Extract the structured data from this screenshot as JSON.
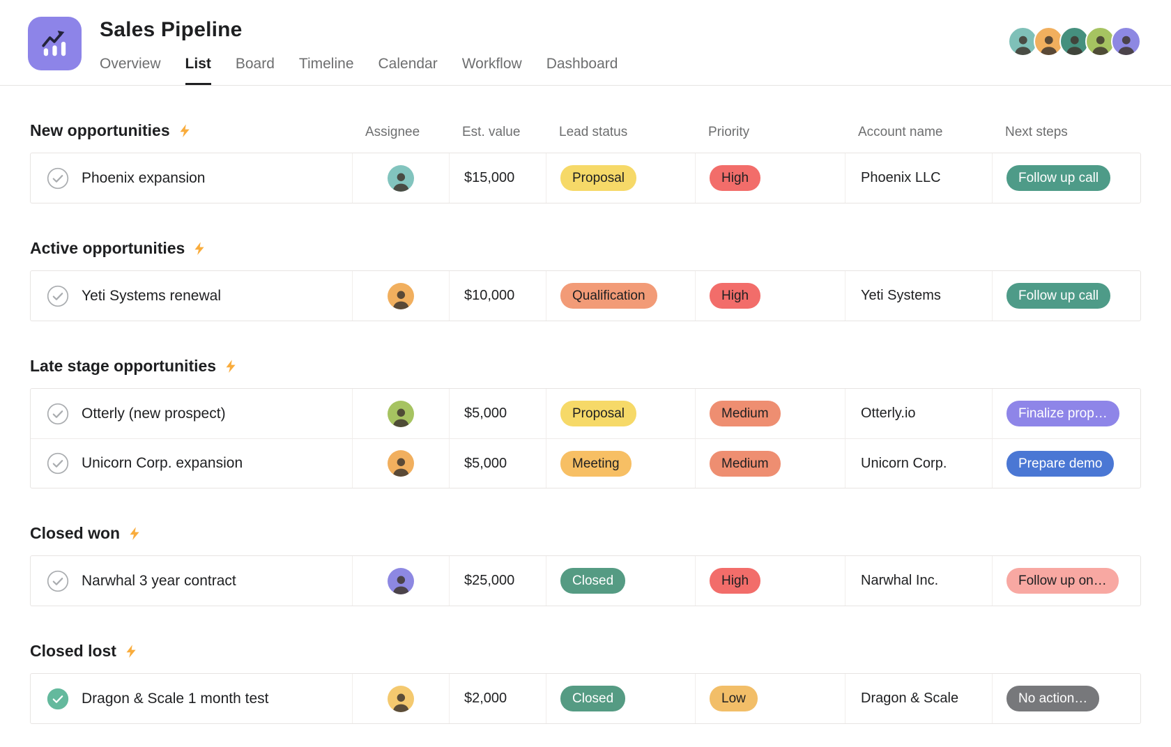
{
  "header": {
    "title": "Sales Pipeline",
    "app_icon_bg": "#8d84e8",
    "tabs": [
      {
        "label": "Overview",
        "active": false
      },
      {
        "label": "List",
        "active": true
      },
      {
        "label": "Board",
        "active": false
      },
      {
        "label": "Timeline",
        "active": false
      },
      {
        "label": "Calendar",
        "active": false
      },
      {
        "label": "Workflow",
        "active": false
      },
      {
        "label": "Dashboard",
        "active": false
      }
    ],
    "team_avatars": [
      {
        "color": "#7fc0b8"
      },
      {
        "color": "#f1af5e"
      },
      {
        "color": "#45907e"
      },
      {
        "color": "#a6c361"
      },
      {
        "color": "#8d88e2"
      }
    ]
  },
  "columns": [
    "Assignee",
    "Est. value",
    "Lead status",
    "Priority",
    "Account name",
    "Next steps"
  ],
  "sections": [
    {
      "title": "New opportunities",
      "rows": [
        {
          "task": "Phoenix expansion",
          "completed": false,
          "avatar_color": "#82c4be",
          "est_value": "$15,000",
          "lead_status": {
            "label": "Proposal",
            "bg": "#f6d968",
            "fg": "#1e1f21"
          },
          "priority": {
            "label": "High",
            "bg": "#f26d6a",
            "fg": "#1e1f21"
          },
          "account": "Phoenix LLC",
          "next_step": {
            "label": "Follow up call",
            "bg": "#4e9b88",
            "fg": "#ffffff"
          }
        }
      ]
    },
    {
      "title": "Active opportunities",
      "rows": [
        {
          "task": "Yeti Systems renewal",
          "completed": false,
          "avatar_color": "#f1af5e",
          "est_value": "$10,000",
          "lead_status": {
            "label": "Qualification",
            "bg": "#f29b77",
            "fg": "#1e1f21"
          },
          "priority": {
            "label": "High",
            "bg": "#f26d6a",
            "fg": "#1e1f21"
          },
          "account": "Yeti Systems",
          "next_step": {
            "label": "Follow up call",
            "bg": "#4e9b88",
            "fg": "#ffffff"
          }
        }
      ]
    },
    {
      "title": "Late stage opportunities",
      "rows": [
        {
          "task": "Otterly (new prospect)",
          "completed": false,
          "avatar_color": "#a6c361",
          "est_value": "$5,000",
          "lead_status": {
            "label": "Proposal",
            "bg": "#f6d968",
            "fg": "#1e1f21"
          },
          "priority": {
            "label": "Medium",
            "bg": "#ee8e71",
            "fg": "#1e1f21"
          },
          "account": "Otterly.io",
          "next_step": {
            "label": "Finalize prop…",
            "bg": "#8e85e8",
            "fg": "#ffffff"
          }
        },
        {
          "task": "Unicorn Corp. expansion",
          "completed": false,
          "avatar_color": "#f1af5e",
          "est_value": "$5,000",
          "lead_status": {
            "label": "Meeting",
            "bg": "#f7bf64",
            "fg": "#1e1f21"
          },
          "priority": {
            "label": "Medium",
            "bg": "#ee8e71",
            "fg": "#1e1f21"
          },
          "account": "Unicorn Corp.",
          "next_step": {
            "label": "Prepare demo",
            "bg": "#4a77d4",
            "fg": "#ffffff"
          }
        }
      ]
    },
    {
      "title": "Closed won",
      "rows": [
        {
          "task": "Narwhal 3 year contract",
          "completed": false,
          "avatar_color": "#8d88e2",
          "est_value": "$25,000",
          "lead_status": {
            "label": "Closed",
            "bg": "#559b83",
            "fg": "#ffffff"
          },
          "priority": {
            "label": "High",
            "bg": "#f26d6a",
            "fg": "#1e1f21"
          },
          "account": "Narwhal Inc.",
          "next_step": {
            "label": "Follow up on…",
            "bg": "#f8a8a2",
            "fg": "#1e1f21"
          }
        }
      ]
    },
    {
      "title": "Closed lost",
      "rows": [
        {
          "task": "Dragon & Scale 1 month test",
          "completed": true,
          "avatar_color": "#f4c96f",
          "est_value": "$2,000",
          "lead_status": {
            "label": "Closed",
            "bg": "#559b83",
            "fg": "#ffffff"
          },
          "priority": {
            "label": "Low",
            "bg": "#f2be68",
            "fg": "#1e1f21"
          },
          "account": "Dragon & Scale",
          "next_step": {
            "label": "No action…",
            "bg": "#77787b",
            "fg": "#ffffff"
          }
        }
      ]
    }
  ]
}
